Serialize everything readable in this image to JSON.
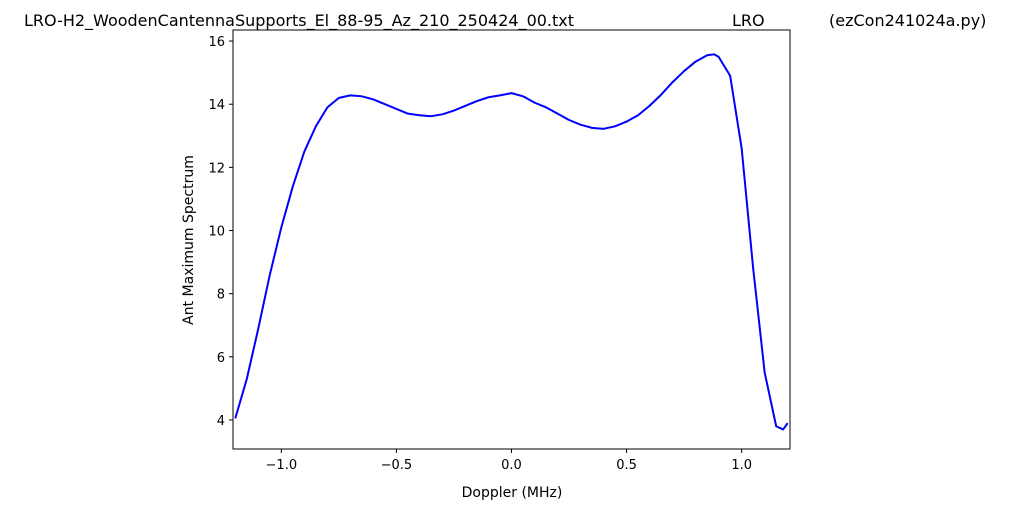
{
  "chart_data": {
    "type": "line",
    "title": "LRO-H2_WoodenCantennaSupports_El_88-95_Az_210_250424_00.txt",
    "subtitle": "LRO",
    "annotation": "(ezCon241024a.py)",
    "x_label": "Doppler (MHz)",
    "y_label": "Ant Maximum Spectrum",
    "x": [
      -1.2,
      -1.15,
      -1.1,
      -1.05,
      -1.0,
      -0.95,
      -0.9,
      -0.85,
      -0.8,
      -0.75,
      -0.7,
      -0.65,
      -0.6,
      -0.55,
      -0.5,
      -0.45,
      -0.4,
      -0.35,
      -0.3,
      -0.25,
      -0.2,
      -0.15,
      -0.1,
      -0.05,
      0.0,
      0.05,
      0.1,
      0.15,
      0.2,
      0.25,
      0.3,
      0.35,
      0.4,
      0.45,
      0.5,
      0.55,
      0.6,
      0.65,
      0.7,
      0.75,
      0.8,
      0.85,
      0.88,
      0.9,
      0.95,
      1.0,
      1.05,
      1.1,
      1.15,
      1.18,
      1.2
    ],
    "series": [
      {
        "name": "Ant Maximum Spectrum",
        "color": "#0000ff",
        "values": [
          4.05,
          5.3,
          6.9,
          8.6,
          10.1,
          11.4,
          12.5,
          13.3,
          13.9,
          14.2,
          14.28,
          14.25,
          14.15,
          14.0,
          13.85,
          13.7,
          13.65,
          13.62,
          13.68,
          13.8,
          13.95,
          14.1,
          14.22,
          14.28,
          14.35,
          14.25,
          14.05,
          13.9,
          13.7,
          13.5,
          13.35,
          13.25,
          13.22,
          13.3,
          13.45,
          13.65,
          13.95,
          14.3,
          14.7,
          15.05,
          15.35,
          15.55,
          15.58,
          15.5,
          14.9,
          12.6,
          8.8,
          5.5,
          3.8,
          3.7,
          3.9
        ]
      }
    ],
    "xlim": [
      -1.21,
      1.21
    ],
    "ylim": [
      3.08,
      16.35
    ],
    "xticks": [
      {
        "value": -1.0,
        "label": "−1.0"
      },
      {
        "value": -0.5,
        "label": "−0.5"
      },
      {
        "value": 0.0,
        "label": "0.0"
      },
      {
        "value": 0.5,
        "label": "0.5"
      },
      {
        "value": 1.0,
        "label": "1.0"
      }
    ],
    "yticks": [
      4,
      6,
      8,
      10,
      12,
      14,
      16
    ],
    "grid": false
  }
}
